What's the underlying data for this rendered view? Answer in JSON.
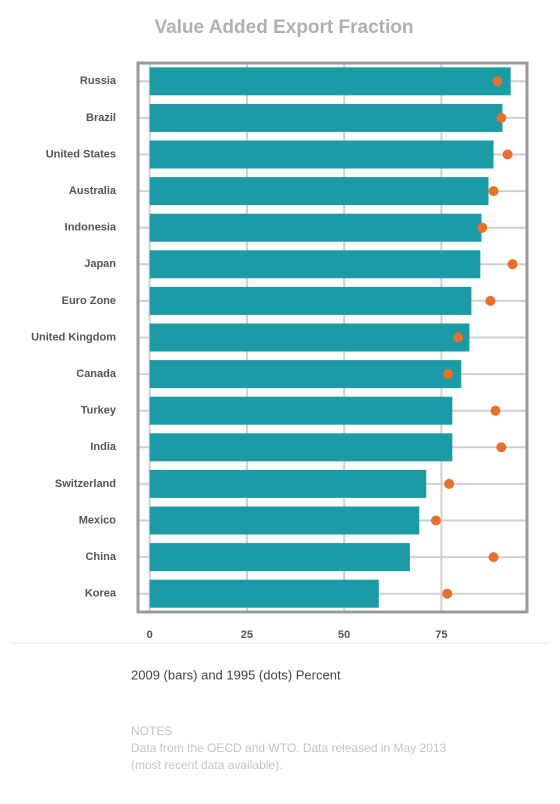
{
  "chart_data": {
    "type": "bar-dot",
    "title": "Value Added Export Fraction",
    "categories": [
      "Russia",
      "Brazil",
      "United States",
      "Australia",
      "Indonesia",
      "Japan",
      "Euro Zone",
      "United Kingdom",
      "Canada",
      "Turkey",
      "India",
      "Switzerland",
      "Mexico",
      "China",
      "Korea"
    ],
    "series": [
      {
        "mark": "bar",
        "color": "#1a9ba5",
        "values": [
          92.8,
          90.7,
          88.4,
          87.1,
          85.3,
          85.0,
          82.7,
          82.2,
          80.1,
          77.8,
          77.8,
          71.1,
          69.3,
          66.9,
          58.9
        ]
      },
      {
        "mark": "dot",
        "color": "#e8702a",
        "values": [
          89.4,
          90.4,
          92.0,
          88.4,
          85.5,
          93.3,
          87.6,
          79.3,
          76.7,
          88.9,
          90.4,
          77.0,
          73.6,
          88.4,
          76.5
        ]
      }
    ],
    "xlim": [
      -3,
      97
    ],
    "xticks": [
      0,
      25,
      50,
      75
    ],
    "grid": true,
    "x_label": "2009 (bars) and 1995 (dots) Percent"
  },
  "notes": {
    "heading": "NOTES",
    "lines": [
      "Data from the OECD and WTO. Data released in May 2013",
      "(most recent data available)."
    ]
  }
}
